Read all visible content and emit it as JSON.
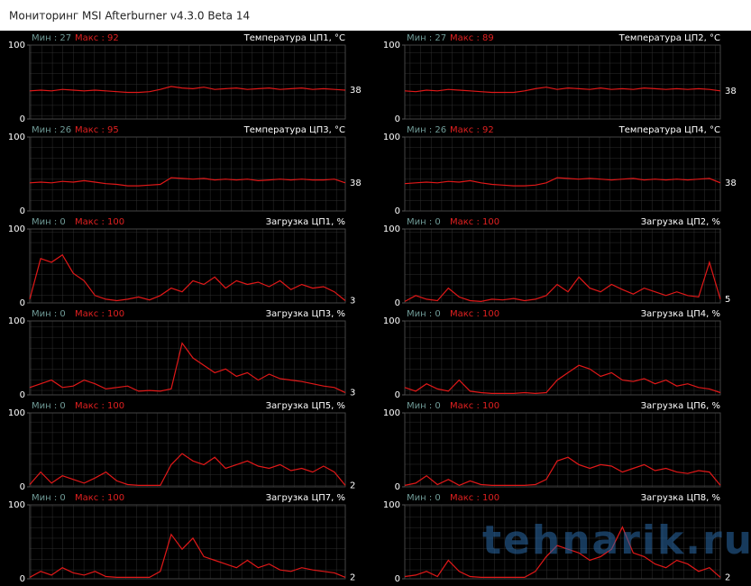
{
  "window": {
    "title": "Мониторинг MSI Afterburner v4.3.0 Beta 14"
  },
  "watermark": "tehnarik.ru",
  "panels": [
    {
      "name": "Температура ЦП1, °C",
      "min_label": "Мин : 27",
      "max_label": "Макс : 92",
      "ylim": [
        0,
        100
      ],
      "yticks": [
        0,
        100
      ],
      "current": 38,
      "color": "#e01818",
      "values": [
        38,
        39,
        38,
        40,
        39,
        38,
        39,
        38,
        37,
        36,
        36,
        37,
        40,
        44,
        42,
        41,
        43,
        40,
        41,
        42,
        40,
        41,
        42,
        40,
        41,
        42,
        40,
        41,
        40,
        39
      ]
    },
    {
      "name": "Температура ЦП2, °C",
      "min_label": "Мин : 27",
      "max_label": "Макс : 89",
      "ylim": [
        0,
        100
      ],
      "yticks": [
        0,
        100
      ],
      "current": 38,
      "color": "#e01818",
      "values": [
        38,
        37,
        39,
        38,
        40,
        39,
        38,
        37,
        36,
        36,
        36,
        38,
        41,
        43,
        40,
        42,
        41,
        40,
        42,
        40,
        41,
        40,
        42,
        41,
        40,
        41,
        40,
        41,
        40,
        38
      ]
    },
    {
      "name": "Температура ЦП3, °C",
      "min_label": "Мин : 26",
      "max_label": "Макс : 95",
      "ylim": [
        0,
        100
      ],
      "yticks": [
        0,
        100
      ],
      "current": 38,
      "color": "#e01818",
      "values": [
        38,
        39,
        38,
        40,
        39,
        41,
        39,
        37,
        36,
        34,
        34,
        35,
        36,
        45,
        44,
        43,
        44,
        42,
        43,
        42,
        43,
        41,
        42,
        43,
        42,
        43,
        42,
        42,
        43,
        38
      ]
    },
    {
      "name": "Температура ЦП4, °C",
      "min_label": "Мин : 26",
      "max_label": "Макс : 92",
      "ylim": [
        0,
        100
      ],
      "yticks": [
        0,
        100
      ],
      "current": 38,
      "color": "#e01818",
      "values": [
        37,
        38,
        39,
        38,
        40,
        39,
        41,
        38,
        36,
        35,
        34,
        34,
        35,
        38,
        45,
        44,
        43,
        44,
        43,
        42,
        43,
        44,
        42,
        43,
        42,
        43,
        42,
        43,
        44,
        38
      ]
    },
    {
      "name": "Загрузка ЦП1, %",
      "min_label": "Мин : 0",
      "max_label": "Макс : 100",
      "ylim": [
        0,
        100
      ],
      "yticks": [
        0,
        100
      ],
      "current": 3,
      "color": "#e01818",
      "values": [
        5,
        60,
        55,
        65,
        40,
        30,
        10,
        5,
        3,
        5,
        8,
        4,
        10,
        20,
        15,
        30,
        25,
        35,
        20,
        30,
        25,
        28,
        22,
        30,
        18,
        25,
        20,
        22,
        15,
        3
      ]
    },
    {
      "name": "Загрузка ЦП2, %",
      "min_label": "Мин : 0",
      "max_label": "Макс : 100",
      "ylim": [
        0,
        100
      ],
      "yticks": [
        0,
        100
      ],
      "current": 5,
      "color": "#e01818",
      "values": [
        2,
        10,
        5,
        3,
        20,
        8,
        3,
        2,
        5,
        4,
        6,
        3,
        5,
        10,
        25,
        15,
        35,
        20,
        15,
        25,
        18,
        12,
        20,
        15,
        10,
        15,
        10,
        8,
        55,
        5
      ]
    },
    {
      "name": "Загрузка ЦП3, %",
      "min_label": "Мин : 0",
      "max_label": "Макс : 100",
      "ylim": [
        0,
        100
      ],
      "yticks": [
        0,
        100
      ],
      "current": 3,
      "color": "#e01818",
      "values": [
        10,
        15,
        20,
        10,
        12,
        20,
        15,
        8,
        10,
        12,
        5,
        6,
        5,
        8,
        70,
        50,
        40,
        30,
        35,
        25,
        30,
        20,
        28,
        22,
        20,
        18,
        15,
        12,
        10,
        3
      ]
    },
    {
      "name": "Загрузка ЦП4, %",
      "min_label": "Мин : 0",
      "max_label": "Макс : 100",
      "ylim": [
        0,
        100
      ],
      "yticks": [
        0,
        100
      ],
      "color": "#e01818",
      "values": [
        10,
        5,
        15,
        8,
        5,
        20,
        5,
        3,
        2,
        2,
        2,
        3,
        2,
        3,
        20,
        30,
        40,
        35,
        25,
        30,
        20,
        18,
        22,
        15,
        20,
        12,
        15,
        10,
        8,
        3
      ]
    },
    {
      "name": "Загрузка ЦП5, %",
      "min_label": "Мин : 0",
      "max_label": "Макс : 100",
      "ylim": [
        0,
        100
      ],
      "yticks": [
        0,
        100
      ],
      "current": 2,
      "color": "#e01818",
      "values": [
        3,
        20,
        5,
        15,
        10,
        5,
        12,
        20,
        8,
        3,
        2,
        2,
        2,
        30,
        45,
        35,
        30,
        40,
        25,
        30,
        35,
        28,
        25,
        30,
        22,
        25,
        20,
        28,
        20,
        2
      ]
    },
    {
      "name": "Загрузка ЦП6, %",
      "min_label": "Мин : 0",
      "max_label": "Макс : 100",
      "ylim": [
        0,
        100
      ],
      "yticks": [
        0,
        100
      ],
      "color": "#e01818",
      "values": [
        2,
        5,
        15,
        3,
        10,
        2,
        8,
        3,
        2,
        2,
        2,
        2,
        3,
        10,
        35,
        40,
        30,
        25,
        30,
        28,
        20,
        25,
        30,
        22,
        25,
        20,
        18,
        22,
        20,
        2
      ]
    },
    {
      "name": "Загрузка ЦП7, %",
      "min_label": "Мин : 0",
      "max_label": "Макс : 100",
      "ylim": [
        0,
        100
      ],
      "yticks": [
        0,
        100
      ],
      "current": 2,
      "color": "#e01818",
      "values": [
        2,
        10,
        5,
        15,
        8,
        5,
        10,
        3,
        2,
        2,
        2,
        2,
        10,
        60,
        40,
        55,
        30,
        25,
        20,
        15,
        25,
        15,
        20,
        12,
        10,
        15,
        12,
        10,
        8,
        2
      ]
    },
    {
      "name": "Загрузка ЦП8, %",
      "min_label": "Мин : 0",
      "max_label": "Макс : 100",
      "ylim": [
        0,
        100
      ],
      "yticks": [
        0,
        100
      ],
      "current": 2,
      "color": "#e01818",
      "values": [
        3,
        5,
        10,
        3,
        25,
        10,
        3,
        2,
        2,
        2,
        2,
        2,
        10,
        30,
        45,
        40,
        35,
        25,
        30,
        40,
        70,
        35,
        30,
        20,
        15,
        25,
        20,
        10,
        15,
        2
      ]
    }
  ]
}
